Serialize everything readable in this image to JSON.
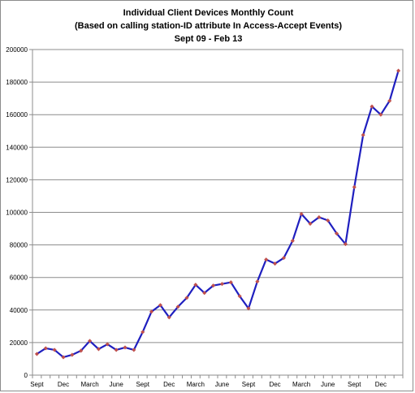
{
  "chart_data": {
    "type": "line",
    "title": "Individual Client Devices Monthly Count",
    "subtitle": "(Based on calling station-ID attribute In Access-Accept Events)",
    "subtitle2": "Sept 09 - Feb 13",
    "xlabel": "",
    "ylabel": "",
    "ylim": [
      0,
      200000
    ],
    "yticks": [
      0,
      20000,
      40000,
      60000,
      80000,
      100000,
      120000,
      140000,
      160000,
      180000,
      200000
    ],
    "grid": true,
    "legend": "none",
    "x_tick_labels": [
      {
        "index": 0,
        "label": "Sept"
      },
      {
        "index": 3,
        "label": "Dec"
      },
      {
        "index": 6,
        "label": "March"
      },
      {
        "index": 9,
        "label": "June"
      },
      {
        "index": 12,
        "label": "Sept"
      },
      {
        "index": 15,
        "label": "Dec"
      },
      {
        "index": 18,
        "label": "March"
      },
      {
        "index": 21,
        "label": "June"
      },
      {
        "index": 24,
        "label": "Sept"
      },
      {
        "index": 27,
        "label": "Dec"
      },
      {
        "index": 30,
        "label": "March"
      },
      {
        "index": 33,
        "label": "June"
      },
      {
        "index": 36,
        "label": "Sept"
      },
      {
        "index": 39,
        "label": "Dec"
      }
    ],
    "series": [
      {
        "values": [
          13000,
          16500,
          15500,
          11000,
          12500,
          15000,
          21000,
          16000,
          19000,
          15500,
          17000,
          15500,
          26500,
          39000,
          43000,
          35500,
          42000,
          47500,
          55500,
          50500,
          55000,
          56000,
          57000,
          48500,
          41000,
          57500,
          71000,
          68500,
          72000,
          82500,
          99000,
          93000,
          97000,
          95000,
          87000,
          80500,
          115500,
          147500,
          165000,
          160000,
          168500,
          187000
        ],
        "line_color": "#1f1fbf",
        "marker_color": "#c0504d"
      }
    ]
  }
}
